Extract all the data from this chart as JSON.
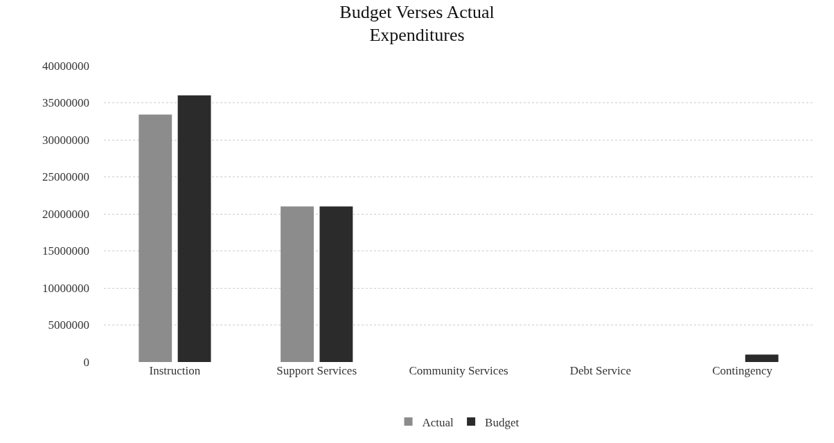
{
  "chart_data": {
    "type": "bar",
    "title": "Budget Verses Actual\nExpenditures",
    "categories": [
      "Instruction",
      "Support Services",
      "Community Services",
      "Debt Service",
      "Contingency"
    ],
    "series": [
      {
        "name": "Actual",
        "color": "#8c8c8c",
        "values": [
          33400000,
          21000000,
          0,
          0,
          0
        ]
      },
      {
        "name": "Budget",
        "color": "#2b2b2b",
        "values": [
          36000000,
          21000000,
          0,
          0,
          1000000
        ]
      }
    ],
    "ylim": [
      0,
      40000000
    ],
    "yticks": [
      0,
      5000000,
      10000000,
      15000000,
      20000000,
      25000000,
      30000000,
      35000000,
      40000000
    ],
    "grid": "y",
    "legend": "bottom"
  }
}
